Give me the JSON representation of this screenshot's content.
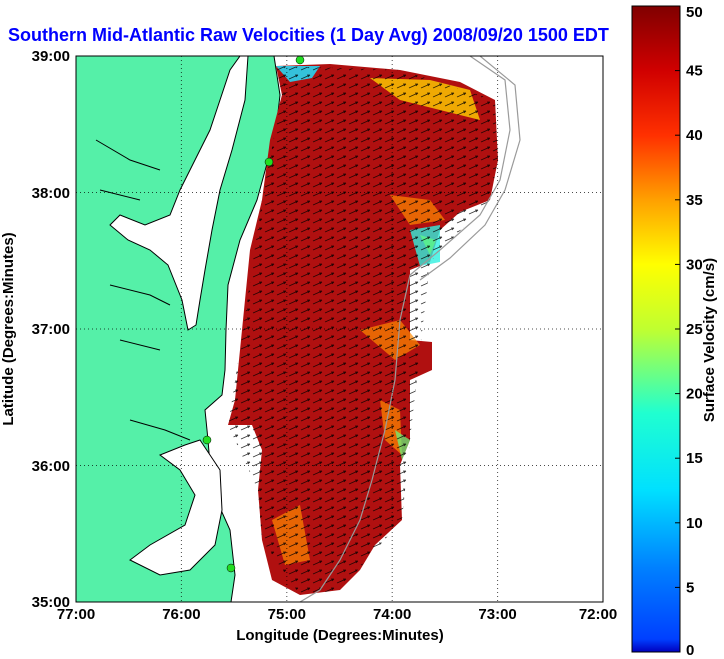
{
  "chart_data": {
    "type": "heatmap",
    "title": "Southern Mid-Atlantic Raw Velocities (1 Day Avg) 2008/09/20 1500 EDT",
    "xlabel": "Longitude (Degrees:Minutes)",
    "ylabel": "Latitude (Degrees:Minutes)",
    "x_ticks": [
      "77:00",
      "76:00",
      "75:00",
      "74:00",
      "73:00",
      "72:00"
    ],
    "y_ticks": [
      "39:00",
      "38:00",
      "37:00",
      "36:00",
      "35:00"
    ],
    "xlim": [
      -77,
      -72
    ],
    "ylim": [
      35,
      39
    ],
    "grid": true,
    "colorbar": {
      "label": "Surface Velocity (cm/s)",
      "range": [
        0,
        50
      ],
      "ticks": [
        "0",
        "5",
        "10",
        "15",
        "20",
        "25",
        "30",
        "35",
        "40",
        "45",
        "50"
      ],
      "colormap": "jet"
    },
    "colors": {
      "land": "#55f0a8",
      "water": "#ffffff",
      "title": "#0000ff",
      "coastline": "#000000",
      "bathymetry": "#9a9a9a",
      "station": "#22dd22"
    }
  }
}
